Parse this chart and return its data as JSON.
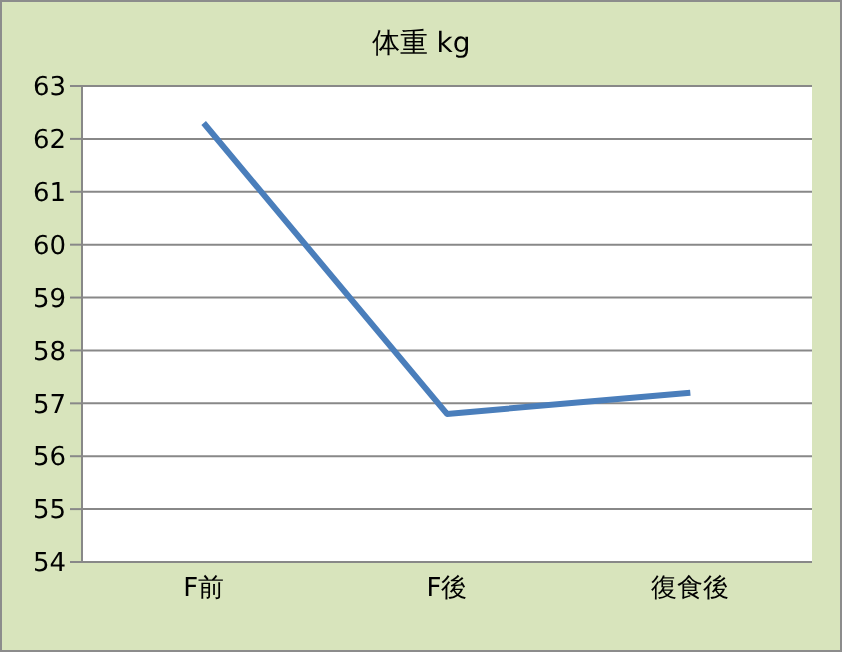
{
  "chart_data": {
    "type": "line",
    "title": "体重 kg",
    "categories": [
      "F前",
      "F後",
      "復食後"
    ],
    "series": [
      {
        "color": "#4a7ebb",
        "values": [
          62.3,
          56.8,
          57.2
        ]
      }
    ],
    "ylim": [
      54,
      63
    ],
    "yticks": [
      54,
      55,
      56,
      57,
      58,
      59,
      60,
      61,
      62,
      63
    ],
    "grid": "y",
    "legend": false,
    "marker": "none"
  }
}
